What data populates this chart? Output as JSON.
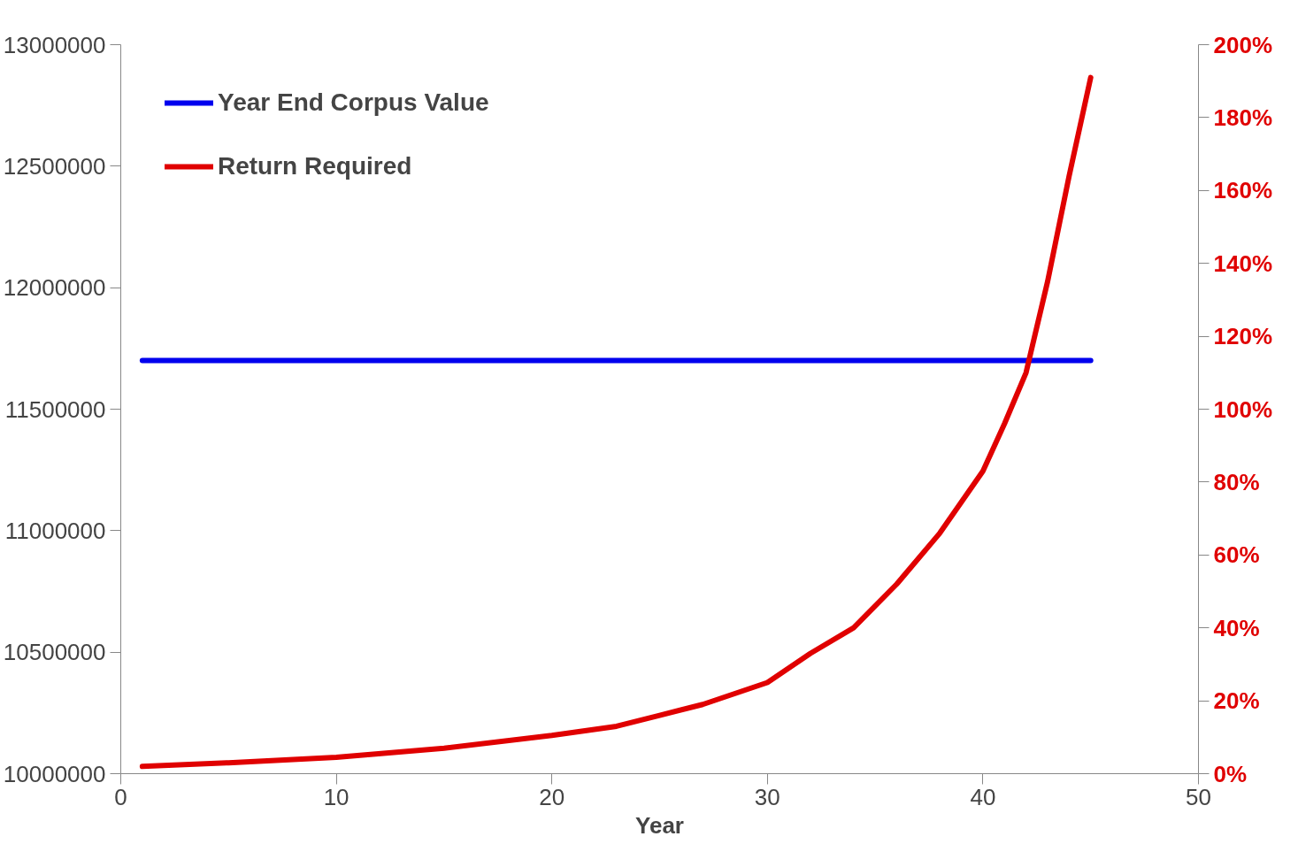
{
  "chart_data": {
    "type": "line",
    "xlabel": "Year",
    "xlim": [
      0,
      50
    ],
    "xticks": [
      0,
      10,
      20,
      30,
      40,
      50
    ],
    "ylim": [
      10000000,
      13000000
    ],
    "yticks": [
      10000000,
      10500000,
      11000000,
      11500000,
      12000000,
      12500000,
      13000000
    ],
    "y2lim": [
      0,
      200
    ],
    "y2ticks": [
      {
        "value": 0,
        "label": "0%"
      },
      {
        "value": 20,
        "label": "20%"
      },
      {
        "value": 40,
        "label": "40%"
      },
      {
        "value": 60,
        "label": "60%"
      },
      {
        "value": 80,
        "label": "80%"
      },
      {
        "value": 100,
        "label": "100%"
      },
      {
        "value": 120,
        "label": "120%"
      },
      {
        "value": 140,
        "label": "140%"
      },
      {
        "value": 160,
        "label": "160%"
      },
      {
        "value": 180,
        "label": "180%"
      },
      {
        "value": 200,
        "label": "200%"
      }
    ],
    "grid": false,
    "legend": "top left",
    "marker": "none",
    "line_style": "solid",
    "series": [
      {
        "name": "Year End Corpus Value",
        "color": "#0000ee",
        "x": [
          1,
          45
        ],
        "values": [
          11700000,
          11700000
        ]
      },
      {
        "name": "Return Required",
        "color": "#e00000",
        "axis": "y2",
        "x": [
          1,
          5,
          10,
          15,
          20,
          23,
          25,
          27,
          30,
          32,
          34,
          36,
          38,
          40,
          41,
          42,
          43,
          44,
          45
        ],
        "values": [
          2,
          3,
          4.5,
          7,
          10.5,
          13,
          16,
          19,
          25,
          33,
          40,
          52,
          66,
          83,
          96,
          110,
          135,
          164,
          191
        ]
      }
    ]
  }
}
